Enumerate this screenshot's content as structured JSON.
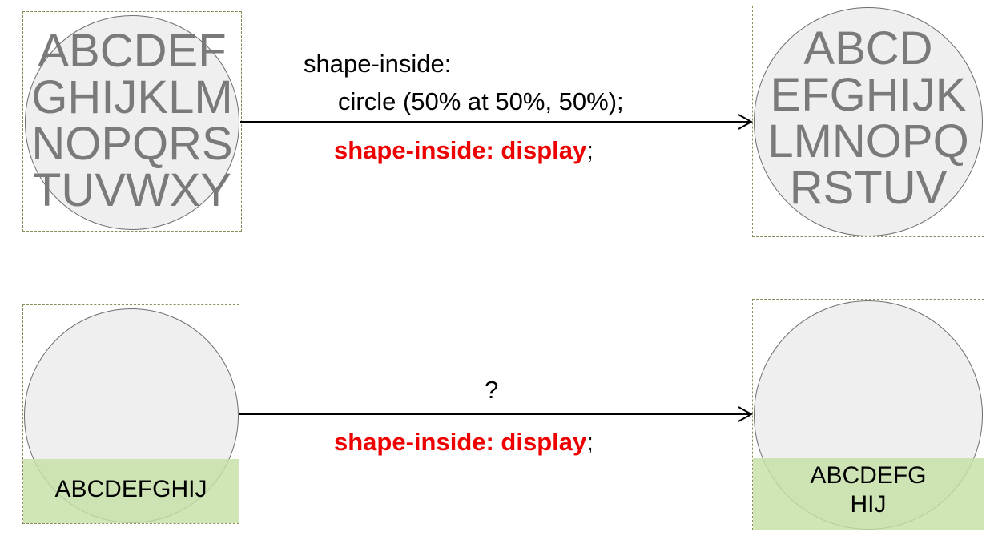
{
  "top_row": {
    "left_letters": [
      "ABCDEF",
      "GHIJKLM",
      "NOPQRS",
      "TUVWXY"
    ],
    "right_letters": [
      "ABCD",
      "EFGHIJK",
      "LMNOPQ",
      "RSTUV"
    ],
    "arrow_label_line1": "shape-inside:",
    "arrow_label_line2": "circle (50% at 50%, 50%);",
    "code_red": "shape-inside: display",
    "code_tail": ";"
  },
  "bottom_row": {
    "left_band_text": [
      "ABCDEFGHIJ"
    ],
    "right_band_text": [
      "ABCDEFG",
      "HIJ"
    ],
    "arrow_label": "?",
    "code_red": "shape-inside: display",
    "code_tail": ";"
  },
  "colors": {
    "circle_fill": "#efefef",
    "band_fill": "#c6e0a6",
    "highlight": "#ee0000",
    "letters": "#7a7a7a"
  }
}
